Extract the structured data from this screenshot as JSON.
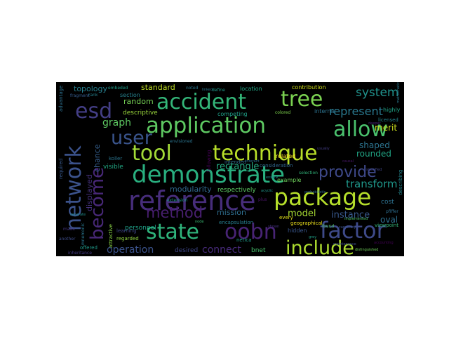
{
  "words": [
    {
      "text": "reference",
      "color": "#472d7b"
    },
    {
      "text": "application",
      "color": "#5ec962"
    },
    {
      "text": "package",
      "color": "#b5de2b"
    },
    {
      "text": "demonstrate",
      "color": "#29af7f"
    },
    {
      "text": "technique",
      "color": "#b8de29"
    },
    {
      "text": "accident",
      "color": "#34b679"
    },
    {
      "text": "network",
      "color": "#3b528b"
    },
    {
      "text": "factor",
      "color": "#3e4a89"
    },
    {
      "text": "tool",
      "color": "#a2da37"
    },
    {
      "text": "tree",
      "color": "#7ad151"
    },
    {
      "text": "allow",
      "color": "#4ac16d"
    },
    {
      "text": "state",
      "color": "#2fb47c"
    },
    {
      "text": "oobn",
      "color": "#482475"
    },
    {
      "text": "include",
      "color": "#addc30"
    },
    {
      "text": "user",
      "color": "#3a548c"
    },
    {
      "text": "become",
      "color": "#482878"
    },
    {
      "text": "esd",
      "color": "#433e85"
    },
    {
      "text": "provide",
      "color": "#3e4989"
    },
    {
      "text": "method",
      "color": "#481f70"
    },
    {
      "text": "system",
      "color": "#20928c"
    },
    {
      "text": "represent",
      "color": "#2a788e"
    },
    {
      "text": "transform",
      "color": "#1f988b"
    },
    {
      "text": "graph",
      "color": "#5ec962"
    },
    {
      "text": "operation",
      "color": "#3b528b"
    },
    {
      "text": "connect",
      "color": "#472a7a"
    },
    {
      "text": "model",
      "color": "#a8db34"
    },
    {
      "text": "instance",
      "color": "#38588c"
    },
    {
      "text": "rectangle",
      "color": "#25ab82"
    },
    {
      "text": "mission",
      "color": "#2e6d8e"
    },
    {
      "text": "modularity",
      "color": "#31688e"
    },
    {
      "text": "topology",
      "color": "#277f8e"
    },
    {
      "text": "standard",
      "color": "#c0df25"
    },
    {
      "text": "random",
      "color": "#75d054"
    },
    {
      "text": "shaped",
      "color": "#2c738e"
    },
    {
      "text": "rounded",
      "color": "#21a685"
    },
    {
      "text": "merit",
      "color": "#cde11d"
    },
    {
      "text": "oval",
      "color": "#2e6e8e"
    },
    {
      "text": "displayed",
      "color": "#46327e"
    },
    {
      "text": "chance",
      "color": "#355f8d"
    },
    {
      "text": "descriptive",
      "color": "#9bd93c"
    },
    {
      "text": "respectively",
      "color": "#5cc863"
    },
    {
      "text": "section",
      "color": "#26828e"
    },
    {
      "text": "visible",
      "color": "#22a884"
    },
    {
      "text": "cost",
      "color": "#2d708e"
    },
    {
      "text": "personnel",
      "color": "#1fa188"
    },
    {
      "text": "desired",
      "color": "#3f4788"
    },
    {
      "text": "bnet",
      "color": "#48c16e"
    },
    {
      "text": "example",
      "color": "#6ccd5a"
    },
    {
      "text": "related",
      "color": "#fde725"
    },
    {
      "text": "location",
      "color": "#22a785"
    },
    {
      "text": "contribution",
      "color": "#d2e21b"
    },
    {
      "text": "internal",
      "color": "#2c728e"
    },
    {
      "text": "embeded",
      "color": "#1f9e89"
    },
    {
      "text": "rank",
      "color": "#26828e"
    },
    {
      "text": "noted",
      "color": "#2a778e"
    },
    {
      "text": "competing",
      "color": "#1fa088"
    },
    {
      "text": "consideration",
      "color": "#31678e"
    },
    {
      "text": "geographical",
      "color": "#f1e51d"
    },
    {
      "text": "hidden",
      "color": "#39568c"
    },
    {
      "text": "netica",
      "color": "#1e9c89"
    },
    {
      "text": "regarded",
      "color": "#93d741"
    },
    {
      "text": "learning",
      "color": "#404688"
    },
    {
      "text": "offered",
      "color": "#1f9a8a"
    },
    {
      "text": "attractive",
      "color": "#8bd646"
    },
    {
      "text": "intended",
      "color": "#2f6c8e"
    },
    {
      "text": "encapsulation",
      "color": "#277e8e"
    },
    {
      "text": "every",
      "color": "#e7e419"
    },
    {
      "text": "plus",
      "color": "#481467"
    },
    {
      "text": "highly",
      "color": "#20a386"
    },
    {
      "text": "viewpoint",
      "color": "#35b779"
    },
    {
      "text": "describing",
      "color": "#24868e"
    },
    {
      "text": "advantage",
      "color": "#2d708e"
    },
    {
      "text": "required",
      "color": "#38598c"
    },
    {
      "text": "another",
      "color": "#3e4c8a"
    },
    {
      "text": "made",
      "color": "#453581"
    },
    {
      "text": "fragment",
      "color": "#365c8d"
    },
    {
      "text": "extension",
      "color": "#1f998a"
    },
    {
      "text": "koller",
      "color": "#2b758e"
    },
    {
      "text": "following",
      "color": "#440154"
    },
    {
      "text": "selection",
      "color": "#31b57b"
    },
    {
      "text": "inheritance",
      "color": "#443983"
    },
    {
      "text": "licensed",
      "color": "#25848e"
    },
    {
      "text": "define",
      "color": "#1e9b8a"
    },
    {
      "text": "found",
      "color": "#52c569"
    },
    {
      "text": "deeper",
      "color": "#482576"
    },
    {
      "text": "shown",
      "color": "#46337f"
    },
    {
      "text": "mnemonic",
      "color": "#2a768e"
    },
    {
      "text": "colored",
      "color": "#7fd34e"
    },
    {
      "text": "accounting",
      "color": "#440256"
    },
    {
      "text": "pfiffer",
      "color": "#2e6e8e"
    },
    {
      "text": "envisioned",
      "color": "#2b748e"
    },
    {
      "text": "distinguished",
      "color": "#6ece58"
    },
    {
      "text": "maintenance",
      "color": "#3d4e8a"
    },
    {
      "text": "capability",
      "color": "#3b518b"
    },
    {
      "text": "separate",
      "color": "#228d8d"
    },
    {
      "text": "implemented",
      "color": "#4ec36b"
    },
    {
      "text": "mathematical",
      "color": "#2a788e"
    },
    {
      "text": "acyclic",
      "color": "#1f968b"
    },
    {
      "text": "specified",
      "color": "#404588"
    },
    {
      "text": "ensure",
      "color": "#24878e"
    },
    {
      "text": "probabilistic",
      "color": "#30698e"
    },
    {
      "text": "interact",
      "color": "#2c718e"
    },
    {
      "text": "usually",
      "color": "#433d84"
    },
    {
      "text": "grey",
      "color": "#1fa287"
    },
    {
      "text": "node",
      "color": "#3bbb75"
    },
    {
      "text": "linked",
      "color": "#2b758e"
    },
    {
      "text": "causal",
      "color": "#481769"
    }
  ]
}
